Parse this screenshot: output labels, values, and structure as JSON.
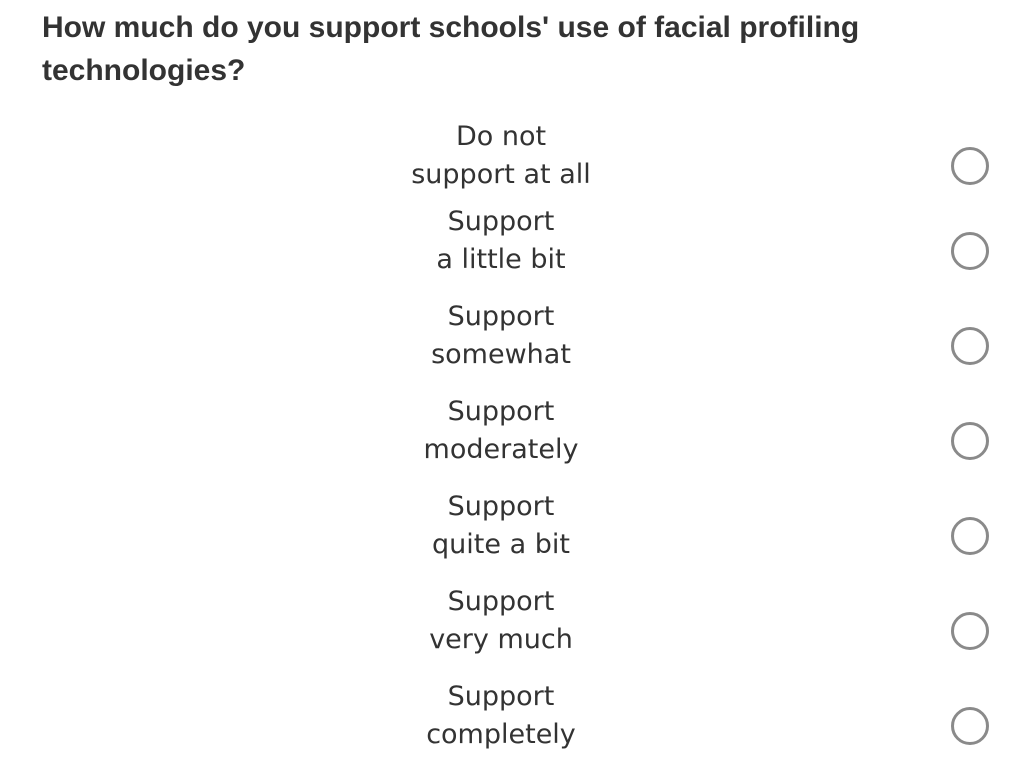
{
  "question": {
    "title": "How much do you support schools' use of facial profiling technologies?"
  },
  "options": [
    {
      "line1": "Do not",
      "line2": "support at all",
      "selected": false
    },
    {
      "line1": "Support",
      "line2": "a little bit",
      "selected": false
    },
    {
      "line1": "Support",
      "line2": "somewhat",
      "selected": false
    },
    {
      "line1": "Support",
      "line2": "moderately",
      "selected": false
    },
    {
      "line1": "Support",
      "line2": "quite a bit",
      "selected": false
    },
    {
      "line1": "Support",
      "line2": "very much",
      "selected": false
    },
    {
      "line1": "Support",
      "line2": "completely",
      "selected": false
    }
  ]
}
